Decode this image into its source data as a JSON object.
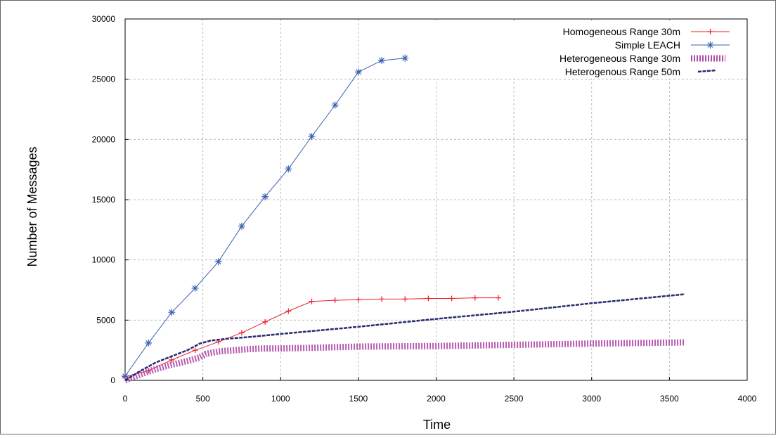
{
  "chart_data": {
    "type": "line",
    "title": "",
    "xlabel": "Time",
    "ylabel": "Number of Messages",
    "xlim": [
      0,
      4000
    ],
    "ylim": [
      0,
      30000
    ],
    "xticks": [
      0,
      500,
      1000,
      1500,
      2000,
      2500,
      3000,
      3500,
      4000
    ],
    "yticks": [
      0,
      5000,
      10000,
      15000,
      20000,
      25000,
      30000
    ],
    "grid": true,
    "legend_position": "top-right",
    "series": [
      {
        "name": "Homogeneous Range 30m",
        "color": "#e8202a",
        "marker": "plus",
        "x": [
          0,
          150,
          300,
          450,
          600,
          750,
          900,
          1050,
          1200,
          1350,
          1500,
          1650,
          1800,
          1950,
          2100,
          2250,
          2400
        ],
        "y": [
          300,
          800,
          1700,
          2500,
          3200,
          3950,
          4850,
          5750,
          6550,
          6650,
          6700,
          6750,
          6750,
          6800,
          6800,
          6850,
          6850
        ]
      },
      {
        "name": "Simple LEACH",
        "color": "#3a62b0",
        "marker": "star",
        "x": [
          0,
          150,
          300,
          450,
          600,
          750,
          900,
          1050,
          1200,
          1350,
          1500,
          1650,
          1800
        ],
        "y": [
          350,
          3100,
          5650,
          7650,
          9850,
          12800,
          15250,
          17550,
          20250,
          22850,
          25600,
          26550,
          26750
        ]
      },
      {
        "name": "Heterogeneous Range 30m",
        "color": "#b04da8",
        "marker": "square",
        "x": [
          0,
          100,
          200,
          300,
          400,
          480,
          520,
          600,
          700,
          800,
          900,
          1000,
          1200,
          1500,
          2000,
          2500,
          3000,
          3600
        ],
        "y": [
          0,
          500,
          950,
          1300,
          1600,
          1900,
          2200,
          2400,
          2500,
          2600,
          2650,
          2650,
          2700,
          2800,
          2850,
          2950,
          3050,
          3150
        ]
      },
      {
        "name": "Heterogenous  Range 50m",
        "color": "#262b70",
        "marker": "dash",
        "x": [
          0,
          100,
          200,
          300,
          400,
          480,
          550,
          650,
          800,
          1000,
          1500,
          2000,
          2500,
          3000,
          3600
        ],
        "y": [
          0,
          800,
          1500,
          2000,
          2500,
          3050,
          3300,
          3450,
          3600,
          3850,
          4450,
          5100,
          5700,
          6400,
          7150
        ]
      }
    ]
  }
}
